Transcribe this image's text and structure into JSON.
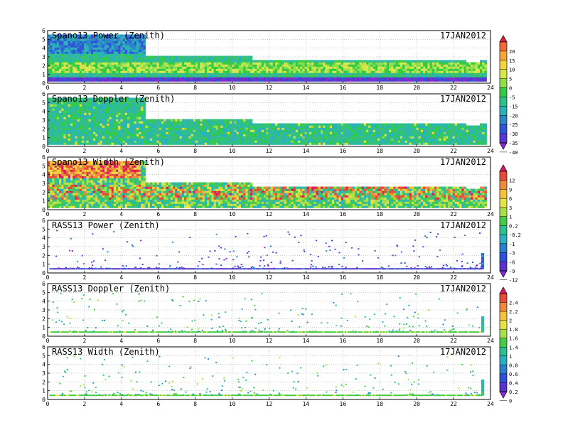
{
  "date_label": "17JAN2012",
  "panels": [
    {
      "title": "Spano13 Power (Zenith)",
      "colorbar": "power"
    },
    {
      "title": "Spano13 Doppler (Zenith)",
      "colorbar": "power"
    },
    {
      "title": "Spano13 Width (Zenith)",
      "colorbar": "width"
    },
    {
      "title": "RASS13 Power (Zenith)",
      "colorbar": "width"
    },
    {
      "title": "RASS13 Doppler (Zenith)",
      "colorbar": "rass"
    },
    {
      "title": "RASS13 Width (Zenith)",
      "colorbar": "rass"
    }
  ],
  "chart_data": {
    "type": "heatmap",
    "x_ticks": [
      "0",
      "2",
      "4",
      "6",
      "8",
      "10",
      "12",
      "14",
      "16",
      "18",
      "20",
      "22",
      "24"
    ],
    "y_ticks": [
      "0",
      "1",
      "2",
      "3",
      "4",
      "5",
      "6"
    ],
    "xlim": [
      0,
      24
    ],
    "ylim": [
      0,
      6
    ],
    "grid": true,
    "colorbars": {
      "power": {
        "labels": [
          "20",
          "15",
          "10",
          "5",
          "0",
          "-5",
          "-15",
          "-20",
          "-25",
          "-30",
          "-35",
          "-40"
        ],
        "colors": [
          "#e0203a",
          "#f06a3a",
          "#f7a43a",
          "#f6d33a",
          "#d8e84a",
          "#8ee04a",
          "#33cc44",
          "#2ec08a",
          "#2ab3b8",
          "#2a87c8",
          "#2f55d8",
          "#5a36d0",
          "#8a2ad0"
        ]
      },
      "width": {
        "labels": [
          "12",
          "9",
          "6",
          "3",
          "1",
          "0.2",
          "-0.2",
          "-1",
          "-3",
          "-6",
          "-9",
          "-12"
        ],
        "colors": [
          "#d81b60",
          "#e84a3a",
          "#f08a3a",
          "#f6c23a",
          "#e6e24a",
          "#a8e04a",
          "#44cc44",
          "#2ec090",
          "#2ab0c0",
          "#2a80cc",
          "#2f50d8",
          "#5b34d0",
          "#8a2ad0"
        ]
      },
      "rass": {
        "labels": [
          "2.4",
          "2.2",
          "2",
          "1.8",
          "1.6",
          "1.4",
          "1",
          "0.8",
          "0.6",
          "0.4",
          "0.2",
          "0"
        ],
        "colors": [
          "#d81b60",
          "#e84a3a",
          "#f08a3a",
          "#f6c23a",
          "#e6e24a",
          "#a8e04a",
          "#44cc44",
          "#2ec090",
          "#2ab0c0",
          "#2a80cc",
          "#2f50d8",
          "#5b34d0",
          "#8a2ad0"
        ]
      }
    }
  }
}
